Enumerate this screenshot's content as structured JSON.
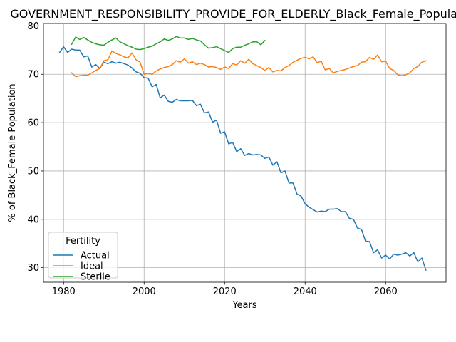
{
  "chart_data": {
    "type": "line",
    "title": "GOVERNMENT_RESPONSIBILITY_PROVIDE_FOR_ELDERLY_Black_Female_Population",
    "xlabel": "Years",
    "ylabel": "% of Black_Female Population",
    "xlim": [
      1975,
      2075
    ],
    "ylim": [
      27,
      80.5
    ],
    "xticks": [
      1980,
      2000,
      2020,
      2040,
      2060
    ],
    "yticks": [
      30,
      40,
      50,
      60,
      70,
      80
    ],
    "grid": true,
    "legend": {
      "title": "Fertility",
      "placement": "lower-left"
    },
    "series": [
      {
        "name": "Actual",
        "color": "#1f77b4",
        "x": [
          1979,
          1980,
          1981,
          1982,
          1983,
          1984,
          1985,
          1986,
          1987,
          1988,
          1989,
          1990,
          1991,
          1992,
          1993,
          1994,
          1995,
          1996,
          1997,
          1998,
          1999,
          2000,
          2001,
          2002,
          2003,
          2004,
          2005,
          2006,
          2007,
          2008,
          2009,
          2010,
          2011,
          2012,
          2013,
          2014,
          2015,
          2016,
          2017,
          2018,
          2019,
          2020,
          2021,
          2022,
          2023,
          2024,
          2025,
          2026,
          2027,
          2028,
          2029,
          2030,
          2031,
          2032,
          2033,
          2034,
          2035,
          2036,
          2037,
          2038,
          2039,
          2040,
          2041,
          2042,
          2043,
          2044,
          2045,
          2046,
          2047,
          2048,
          2049,
          2050,
          2051,
          2052,
          2053,
          2054,
          2055,
          2056,
          2057,
          2058,
          2059,
          2060,
          2061,
          2062,
          2063,
          2064,
          2065,
          2066,
          2067,
          2068,
          2069,
          2070
        ],
        "y": [
          74.5,
          75.7,
          74.5,
          75.2,
          75.0,
          75.0,
          73.6,
          73.8,
          71.5,
          72.0,
          71.2,
          72.5,
          72.2,
          72.6,
          72.3,
          72.5,
          72.2,
          71.9,
          71.3,
          70.5,
          70.2,
          69.3,
          69.2,
          67.4,
          67.9,
          65.1,
          65.7,
          64.4,
          64.2,
          64.8,
          64.5,
          64.5,
          64.5,
          64.6,
          63.5,
          63.8,
          62.0,
          62.2,
          60.1,
          60.5,
          57.8,
          58.1,
          55.6,
          55.9,
          54.0,
          54.6,
          53.2,
          53.6,
          53.3,
          53.4,
          53.3,
          52.6,
          52.9,
          51.2,
          51.9,
          49.6,
          50.0,
          47.5,
          47.5,
          45.2,
          44.8,
          43.2,
          42.5,
          42.0,
          41.5,
          41.7,
          41.6,
          42.1,
          42.1,
          42.2,
          41.6,
          41.6,
          40.2,
          40.0,
          38.2,
          37.9,
          35.5,
          35.4,
          33.1,
          33.7,
          32.0,
          32.6,
          31.8,
          32.8,
          32.6,
          32.8,
          33.1,
          32.4,
          33.1,
          31.2,
          32.0,
          29.5
        ]
      },
      {
        "name": "Ideal",
        "color": "#ff7f0e",
        "x": [
          1982,
          1983,
          1984,
          1985,
          1986,
          1987,
          1988,
          1989,
          1990,
          1991,
          1992,
          1993,
          1994,
          1995,
          1996,
          1997,
          1998,
          1999,
          2000,
          2001,
          2002,
          2003,
          2004,
          2005,
          2006,
          2007,
          2008,
          2009,
          2010,
          2011,
          2012,
          2013,
          2014,
          2015,
          2016,
          2017,
          2018,
          2019,
          2020,
          2021,
          2022,
          2023,
          2024,
          2025,
          2026,
          2027,
          2028,
          2029,
          2030,
          2031,
          2032,
          2033,
          2034,
          2035,
          2036,
          2037,
          2038,
          2039,
          2040,
          2041,
          2042,
          2043,
          2044,
          2045,
          2046,
          2047,
          2048,
          2049,
          2050,
          2051,
          2052,
          2053,
          2054,
          2055,
          2056,
          2057,
          2058,
          2059,
          2060,
          2061,
          2062,
          2063,
          2064,
          2065,
          2066,
          2067,
          2068,
          2069,
          2070
        ],
        "y": [
          70.3,
          69.5,
          69.7,
          69.8,
          69.8,
          70.3,
          70.8,
          71.2,
          72.8,
          73.0,
          74.8,
          74.3,
          74.0,
          73.6,
          73.4,
          74.4,
          73.0,
          72.5,
          70.0,
          70.2,
          70.0,
          70.7,
          71.1,
          71.4,
          71.6,
          72.0,
          72.8,
          72.5,
          73.2,
          72.3,
          72.6,
          72.0,
          72.3,
          72.0,
          71.5,
          71.6,
          71.4,
          71.0,
          71.5,
          71.2,
          72.2,
          71.9,
          72.8,
          72.3,
          73.1,
          72.2,
          71.8,
          71.4,
          70.8,
          71.4,
          70.5,
          70.8,
          70.7,
          71.4,
          71.8,
          72.5,
          72.9,
          73.3,
          73.5,
          73.2,
          73.6,
          72.4,
          72.7,
          70.9,
          71.2,
          70.3,
          70.6,
          70.8,
          71.0,
          71.3,
          71.6,
          71.8,
          72.5,
          72.6,
          73.5,
          73.1,
          74.0,
          72.6,
          72.7,
          71.2,
          70.8,
          69.9,
          69.7,
          69.9,
          70.3,
          71.2,
          71.6,
          72.5,
          72.8
        ]
      },
      {
        "name": "Sterile",
        "color": "#2ca02c",
        "x": [
          1982,
          1983,
          1984,
          1985,
          1986,
          1987,
          1988,
          1989,
          1990,
          1991,
          1992,
          1993,
          1994,
          1995,
          1996,
          1997,
          1998,
          1999,
          2000,
          2001,
          2002,
          2003,
          2004,
          2005,
          2006,
          2007,
          2008,
          2009,
          2010,
          2011,
          2012,
          2013,
          2014,
          2015,
          2016,
          2017,
          2018,
          2019,
          2020,
          2021,
          2022,
          2023,
          2024,
          2025,
          2026,
          2027,
          2028,
          2029,
          2030
        ],
        "y": [
          76.2,
          77.7,
          77.2,
          77.6,
          77.1,
          76.6,
          76.3,
          76.1,
          76.0,
          76.6,
          77.1,
          77.5,
          76.7,
          76.3,
          75.9,
          75.6,
          75.2,
          75.1,
          75.3,
          75.6,
          75.8,
          76.3,
          76.7,
          77.3,
          77.0,
          77.3,
          77.8,
          77.5,
          77.5,
          77.2,
          77.4,
          77.1,
          76.9,
          76.1,
          75.4,
          75.5,
          75.7,
          75.3,
          74.9,
          74.5,
          75.3,
          75.6,
          75.6,
          76.0,
          76.3,
          76.7,
          76.7,
          76.1,
          77.0
        ]
      }
    ]
  }
}
